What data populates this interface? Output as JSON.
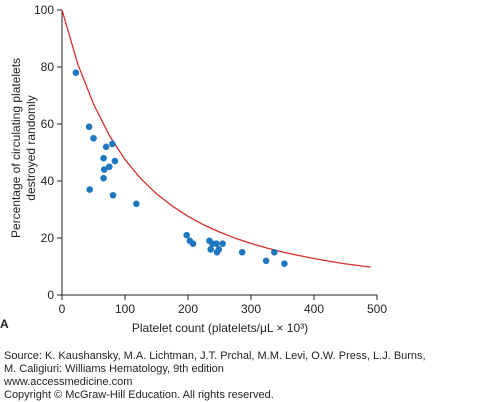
{
  "chart_data": {
    "type": "scatter",
    "panel_label": "A",
    "xlabel": "Platelet count (platelets/μL × 10³)",
    "ylabel_lines": [
      "Percentage of circulating platelets",
      "destroyed randomly"
    ],
    "xlim": [
      0,
      500
    ],
    "ylim": [
      0,
      100
    ],
    "x_ticks": [
      0,
      100,
      200,
      300,
      400,
      500
    ],
    "y_ticks": [
      0,
      20,
      40,
      60,
      80,
      100
    ],
    "grid": false,
    "point_color": "#1f78bf",
    "curve_color": "#d32f2f",
    "points": [
      {
        "x": 22,
        "y": 78
      },
      {
        "x": 43,
        "y": 59
      },
      {
        "x": 50,
        "y": 55
      },
      {
        "x": 80,
        "y": 53
      },
      {
        "x": 70,
        "y": 52
      },
      {
        "x": 66,
        "y": 48
      },
      {
        "x": 84,
        "y": 47
      },
      {
        "x": 75,
        "y": 45
      },
      {
        "x": 67,
        "y": 44
      },
      {
        "x": 66,
        "y": 41
      },
      {
        "x": 44,
        "y": 37
      },
      {
        "x": 81,
        "y": 35
      },
      {
        "x": 118,
        "y": 32
      },
      {
        "x": 198,
        "y": 21
      },
      {
        "x": 203,
        "y": 19
      },
      {
        "x": 208,
        "y": 18
      },
      {
        "x": 234,
        "y": 19
      },
      {
        "x": 236,
        "y": 16
      },
      {
        "x": 239,
        "y": 18
      },
      {
        "x": 245,
        "y": 18
      },
      {
        "x": 249,
        "y": 16
      },
      {
        "x": 255,
        "y": 18
      },
      {
        "x": 246,
        "y": 15
      },
      {
        "x": 286,
        "y": 15
      },
      {
        "x": 324,
        "y": 12
      },
      {
        "x": 337,
        "y": 15
      },
      {
        "x": 353,
        "y": 11
      }
    ],
    "curve": {
      "x": [
        0,
        25,
        50,
        75,
        100,
        125,
        150,
        175,
        200,
        225,
        250,
        275,
        300,
        325,
        350,
        375,
        400,
        425,
        450,
        475,
        490
      ],
      "y": [
        100,
        81,
        67,
        56,
        47.5,
        40.8,
        35.5,
        31.2,
        27.6,
        24.6,
        22.1,
        19.9,
        18.1,
        16.5,
        15.1,
        13.9,
        12.8,
        11.8,
        10.9,
        10.2,
        9.8
      ]
    }
  },
  "source": {
    "line1": "Source: K. Kaushansky, M.A. Lichtman, J.T. Prchal, M.M. Levi, O.W. Press, L.J. Burns,",
    "line2": "M. Caligiuri: Williams Hematology, 9th edition",
    "line3": "www.accessmedicine.com",
    "line4": "Copyright © McGraw-Hill Education.  All rights reserved."
  }
}
